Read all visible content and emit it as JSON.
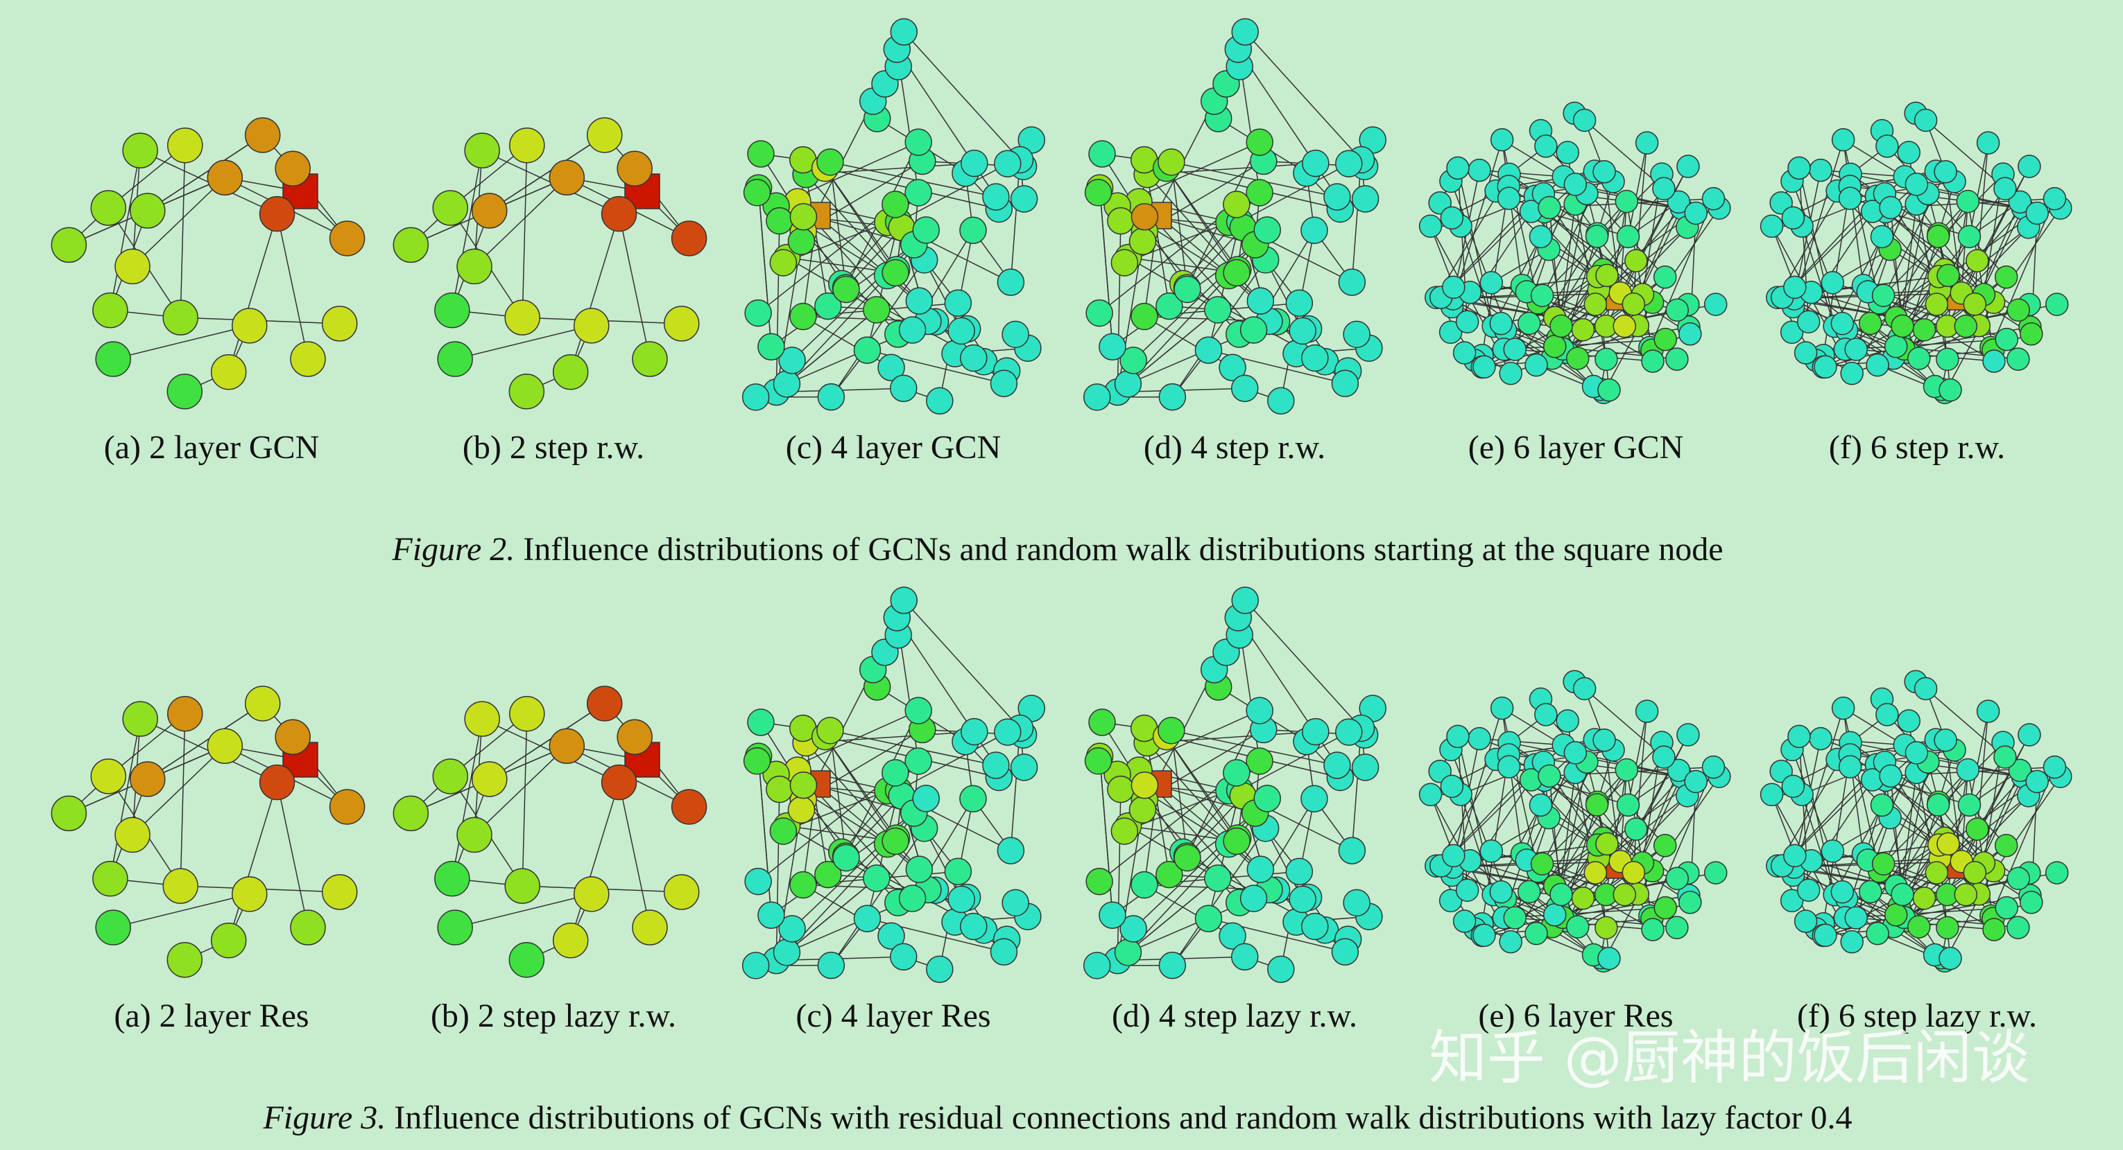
{
  "figures": [
    {
      "subcaptions": [
        "(a) 2 layer GCN",
        "(b) 2 step r.w.",
        "(c) 4 layer GCN",
        "(d) 4 step r.w.",
        "(e) 6 layer GCN",
        "(f) 6 step r.w."
      ],
      "label": "Figure 2.",
      "caption": "Influence distributions of GCNs and random walk distributions starting at the square node"
    },
    {
      "subcaptions": [
        "(a) 2 layer Res",
        "(b) 2 step lazy r.w.",
        "(c) 4 layer Res",
        "(d) 4 step lazy r.w.",
        "(e) 6 layer Res",
        "(f) 6 step lazy r.w."
      ],
      "label": "Figure 3.",
      "caption": "Influence distributions of GCNs with residual connections and random walk distributions with lazy factor 0.4"
    }
  ],
  "watermark": "知乎 @厨神的饭后闲谈"
}
